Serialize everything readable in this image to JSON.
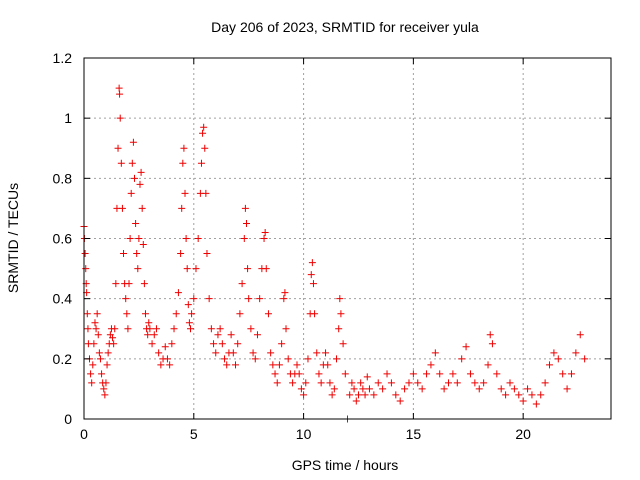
{
  "chart_data": {
    "type": "scatter",
    "title": "Day 206 of 2023, SRMTID for receiver yula",
    "xlabel": "GPS time / hours",
    "ylabel": "SRMTID / TECUs",
    "xlim": [
      0,
      24
    ],
    "ylim": [
      0,
      1.2
    ],
    "xticks": [
      0,
      5,
      10,
      15,
      20
    ],
    "xtick_labels": [
      "0",
      "5",
      "10",
      "15",
      "20"
    ],
    "yticks": [
      0,
      0.2,
      0.4,
      0.6,
      0.8,
      1,
      1.2
    ],
    "ytick_labels": [
      "0",
      "0.2",
      "0.4",
      "0.6",
      "0.8",
      "1",
      "1.2"
    ],
    "grid": true,
    "marker": "+",
    "marker_color": "#ee0000",
    "series": [
      {
        "name": "SRMTID",
        "points": [
          [
            0.0,
            0.64
          ],
          [
            0.02,
            0.6
          ],
          [
            0.05,
            0.55
          ],
          [
            0.08,
            0.5
          ],
          [
            0.1,
            0.45
          ],
          [
            0.12,
            0.42
          ],
          [
            0.15,
            0.35
          ],
          [
            0.18,
            0.3
          ],
          [
            0.2,
            0.25
          ],
          [
            0.25,
            0.2
          ],
          [
            0.3,
            0.15
          ],
          [
            0.35,
            0.12
          ],
          [
            0.4,
            0.18
          ],
          [
            0.45,
            0.25
          ],
          [
            0.5,
            0.32
          ],
          [
            0.55,
            0.3
          ],
          [
            0.6,
            0.35
          ],
          [
            0.65,
            0.28
          ],
          [
            0.7,
            0.22
          ],
          [
            0.75,
            0.2
          ],
          [
            0.8,
            0.15
          ],
          [
            0.85,
            0.12
          ],
          [
            0.9,
            0.1
          ],
          [
            0.95,
            0.08
          ],
          [
            1.0,
            0.12
          ],
          [
            1.05,
            0.18
          ],
          [
            1.1,
            0.22
          ],
          [
            1.15,
            0.25
          ],
          [
            1.2,
            0.28
          ],
          [
            1.25,
            0.3
          ],
          [
            1.3,
            0.27
          ],
          [
            1.35,
            0.25
          ],
          [
            1.4,
            0.3
          ],
          [
            1.45,
            0.45
          ],
          [
            1.5,
            0.7
          ],
          [
            1.55,
            0.9
          ],
          [
            1.6,
            1.1
          ],
          [
            1.62,
            1.08
          ],
          [
            1.65,
            1.0
          ],
          [
            1.7,
            0.85
          ],
          [
            1.75,
            0.7
          ],
          [
            1.8,
            0.55
          ],
          [
            1.85,
            0.45
          ],
          [
            1.9,
            0.4
          ],
          [
            1.95,
            0.35
          ],
          [
            2.0,
            0.3
          ],
          [
            2.05,
            0.45
          ],
          [
            2.1,
            0.6
          ],
          [
            2.15,
            0.75
          ],
          [
            2.2,
            0.85
          ],
          [
            2.25,
            0.92
          ],
          [
            2.3,
            0.8
          ],
          [
            2.35,
            0.65
          ],
          [
            2.4,
            0.55
          ],
          [
            2.45,
            0.5
          ],
          [
            2.5,
            0.6
          ],
          [
            2.55,
            0.78
          ],
          [
            2.6,
            0.82
          ],
          [
            2.65,
            0.7
          ],
          [
            2.7,
            0.58
          ],
          [
            2.75,
            0.45
          ],
          [
            2.8,
            0.35
          ],
          [
            2.85,
            0.3
          ],
          [
            2.9,
            0.28
          ],
          [
            2.95,
            0.32
          ],
          [
            3.0,
            0.3
          ],
          [
            3.1,
            0.25
          ],
          [
            3.2,
            0.28
          ],
          [
            3.3,
            0.3
          ],
          [
            3.4,
            0.22
          ],
          [
            3.5,
            0.18
          ],
          [
            3.6,
            0.2
          ],
          [
            3.7,
            0.24
          ],
          [
            3.8,
            0.2
          ],
          [
            3.9,
            0.18
          ],
          [
            4.0,
            0.25
          ],
          [
            4.1,
            0.3
          ],
          [
            4.2,
            0.35
          ],
          [
            4.3,
            0.42
          ],
          [
            4.4,
            0.55
          ],
          [
            4.45,
            0.7
          ],
          [
            4.5,
            0.85
          ],
          [
            4.55,
            0.9
          ],
          [
            4.6,
            0.75
          ],
          [
            4.65,
            0.6
          ],
          [
            4.7,
            0.5
          ],
          [
            4.75,
            0.38
          ],
          [
            4.8,
            0.32
          ],
          [
            4.85,
            0.3
          ],
          [
            4.9,
            0.35
          ],
          [
            5.0,
            0.4
          ],
          [
            5.1,
            0.5
          ],
          [
            5.2,
            0.6
          ],
          [
            5.3,
            0.75
          ],
          [
            5.35,
            0.85
          ],
          [
            5.4,
            0.95
          ],
          [
            5.45,
            0.97
          ],
          [
            5.5,
            0.9
          ],
          [
            5.55,
            0.75
          ],
          [
            5.6,
            0.55
          ],
          [
            5.7,
            0.4
          ],
          [
            5.8,
            0.3
          ],
          [
            5.9,
            0.25
          ],
          [
            6.0,
            0.22
          ],
          [
            6.1,
            0.28
          ],
          [
            6.2,
            0.3
          ],
          [
            6.3,
            0.25
          ],
          [
            6.4,
            0.2
          ],
          [
            6.5,
            0.18
          ],
          [
            6.6,
            0.22
          ],
          [
            6.7,
            0.28
          ],
          [
            6.8,
            0.22
          ],
          [
            6.9,
            0.18
          ],
          [
            7.0,
            0.25
          ],
          [
            7.1,
            0.35
          ],
          [
            7.2,
            0.45
          ],
          [
            7.3,
            0.6
          ],
          [
            7.35,
            0.7
          ],
          [
            7.4,
            0.65
          ],
          [
            7.45,
            0.5
          ],
          [
            7.5,
            0.4
          ],
          [
            7.6,
            0.3
          ],
          [
            7.7,
            0.22
          ],
          [
            7.8,
            0.2
          ],
          [
            7.9,
            0.28
          ],
          [
            8.0,
            0.4
          ],
          [
            8.1,
            0.5
          ],
          [
            8.2,
            0.6
          ],
          [
            8.25,
            0.62
          ],
          [
            8.3,
            0.5
          ],
          [
            8.4,
            0.35
          ],
          [
            8.5,
            0.22
          ],
          [
            8.6,
            0.18
          ],
          [
            8.7,
            0.15
          ],
          [
            8.8,
            0.12
          ],
          [
            8.9,
            0.18
          ],
          [
            9.0,
            0.25
          ],
          [
            9.1,
            0.4
          ],
          [
            9.15,
            0.42
          ],
          [
            9.2,
            0.3
          ],
          [
            9.3,
            0.2
          ],
          [
            9.4,
            0.15
          ],
          [
            9.5,
            0.12
          ],
          [
            9.6,
            0.15
          ],
          [
            9.7,
            0.18
          ],
          [
            9.8,
            0.15
          ],
          [
            9.9,
            0.1
          ],
          [
            10.0,
            0.08
          ],
          [
            10.1,
            0.12
          ],
          [
            10.2,
            0.2
          ],
          [
            10.3,
            0.35
          ],
          [
            10.35,
            0.48
          ],
          [
            10.4,
            0.52
          ],
          [
            10.45,
            0.45
          ],
          [
            10.5,
            0.35
          ],
          [
            10.6,
            0.22
          ],
          [
            10.7,
            0.15
          ],
          [
            10.8,
            0.12
          ],
          [
            10.9,
            0.18
          ],
          [
            11.0,
            0.22
          ],
          [
            11.1,
            0.18
          ],
          [
            11.2,
            0.12
          ],
          [
            11.3,
            0.08
          ],
          [
            11.4,
            0.1
          ],
          [
            11.5,
            0.2
          ],
          [
            11.6,
            0.3
          ],
          [
            11.65,
            0.4
          ],
          [
            11.7,
            0.35
          ],
          [
            11.8,
            0.25
          ],
          [
            11.9,
            0.15
          ],
          [
            12.0,
            0.0
          ],
          [
            12.1,
            0.08
          ],
          [
            12.2,
            0.12
          ],
          [
            12.3,
            0.1
          ],
          [
            12.4,
            0.06
          ],
          [
            12.5,
            0.08
          ],
          [
            12.6,
            0.12
          ],
          [
            12.7,
            0.1
          ],
          [
            12.8,
            0.08
          ],
          [
            12.9,
            0.14
          ],
          [
            13.0,
            0.1
          ],
          [
            13.2,
            0.08
          ],
          [
            13.4,
            0.12
          ],
          [
            13.6,
            0.1
          ],
          [
            13.8,
            0.15
          ],
          [
            14.0,
            0.12
          ],
          [
            14.2,
            0.08
          ],
          [
            14.4,
            0.06
          ],
          [
            14.6,
            0.1
          ],
          [
            14.8,
            0.12
          ],
          [
            15.0,
            0.15
          ],
          [
            15.2,
            0.12
          ],
          [
            15.4,
            0.1
          ],
          [
            15.6,
            0.15
          ],
          [
            15.8,
            0.18
          ],
          [
            16.0,
            0.22
          ],
          [
            16.2,
            0.15
          ],
          [
            16.4,
            0.1
          ],
          [
            16.6,
            0.12
          ],
          [
            16.8,
            0.15
          ],
          [
            17.0,
            0.12
          ],
          [
            17.2,
            0.2
          ],
          [
            17.4,
            0.24
          ],
          [
            17.6,
            0.15
          ],
          [
            17.8,
            0.12
          ],
          [
            18.0,
            0.1
          ],
          [
            18.2,
            0.12
          ],
          [
            18.4,
            0.18
          ],
          [
            18.5,
            0.28
          ],
          [
            18.6,
            0.25
          ],
          [
            18.8,
            0.15
          ],
          [
            19.0,
            0.1
          ],
          [
            19.2,
            0.08
          ],
          [
            19.4,
            0.12
          ],
          [
            19.6,
            0.1
          ],
          [
            19.8,
            0.08
          ],
          [
            20.0,
            0.06
          ],
          [
            20.2,
            0.1
          ],
          [
            20.4,
            0.08
          ],
          [
            20.6,
            0.05
          ],
          [
            20.8,
            0.08
          ],
          [
            21.0,
            0.12
          ],
          [
            21.2,
            0.18
          ],
          [
            21.4,
            0.22
          ],
          [
            21.6,
            0.2
          ],
          [
            21.8,
            0.15
          ],
          [
            22.0,
            0.1
          ],
          [
            22.2,
            0.15
          ],
          [
            22.4,
            0.22
          ],
          [
            22.6,
            0.28
          ],
          [
            22.8,
            0.2
          ]
        ]
      }
    ]
  }
}
